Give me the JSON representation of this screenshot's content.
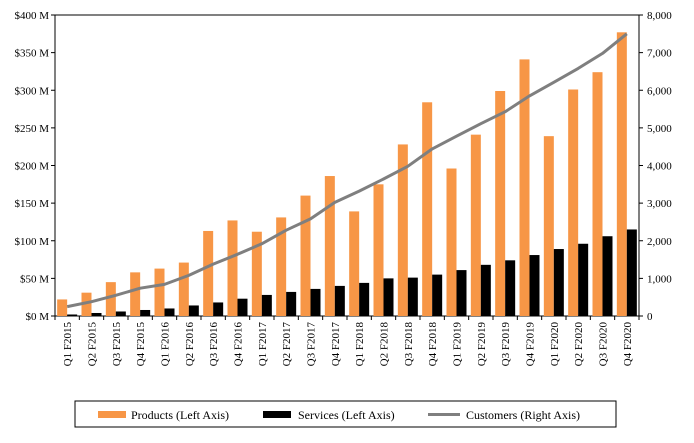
{
  "chart_data": {
    "type": "bar",
    "categories": [
      "Q1 F2015",
      "Q2 F2015",
      "Q3 F2015",
      "Q4 F2015",
      "Q1 F2016",
      "Q2 F2016",
      "Q3 F2016",
      "Q4 F2016",
      "Q1 F2017",
      "Q2 F2017",
      "Q3 F2017",
      "Q4 F2017",
      "Q1 F2018",
      "Q2 F2018",
      "Q3 F2018",
      "Q4 F2018",
      "Q1 F2019",
      "Q2 F2019",
      "Q3 F2019",
      "Q4 F2019",
      "Q1 F2020",
      "Q2 F2020",
      "Q3 F2020",
      "Q4 F2020"
    ],
    "series": [
      {
        "name": "Products (Left Axis)",
        "kind": "bar",
        "axis": "left",
        "color": "#F79646",
        "values": [
          22,
          31,
          45,
          58,
          63,
          71,
          113,
          127,
          112,
          131,
          160,
          186,
          139,
          175,
          228,
          284,
          196,
          241,
          299,
          341,
          239,
          301,
          324,
          377
        ]
      },
      {
        "name": "Services (Left Axis)",
        "kind": "bar",
        "axis": "left",
        "color": "#000000",
        "values": [
          2,
          4,
          6,
          8,
          10,
          14,
          18,
          23,
          28,
          32,
          36,
          40,
          44,
          50,
          51,
          55,
          61,
          68,
          74,
          81,
          89,
          96,
          106,
          115
        ]
      },
      {
        "name": "Customers (Right Axis)",
        "kind": "line",
        "axis": "right",
        "color": "#7F7F7F",
        "values": [
          250,
          380,
          550,
          740,
          840,
          1080,
          1380,
          1640,
          1920,
          2280,
          2580,
          3020,
          3320,
          3640,
          3980,
          4440,
          4780,
          5110,
          5430,
          5850,
          6210,
          6580,
          6980,
          7500
        ]
      }
    ],
    "y_left": {
      "min": 0,
      "max": 400,
      "step": 50,
      "ticks": [
        "$0 M",
        "$50 M",
        "$100 M",
        "$150 M",
        "$200 M",
        "$250 M",
        "$300 M",
        "$350 M",
        "$400 M"
      ]
    },
    "y_right": {
      "min": 0,
      "max": 8000,
      "step": 1000,
      "ticks": [
        "0",
        "1,000",
        "2,000",
        "3,000",
        "4,000",
        "5,000",
        "6,000",
        "7,000",
        "8,000"
      ]
    },
    "grid": false,
    "legend": "bottom"
  }
}
